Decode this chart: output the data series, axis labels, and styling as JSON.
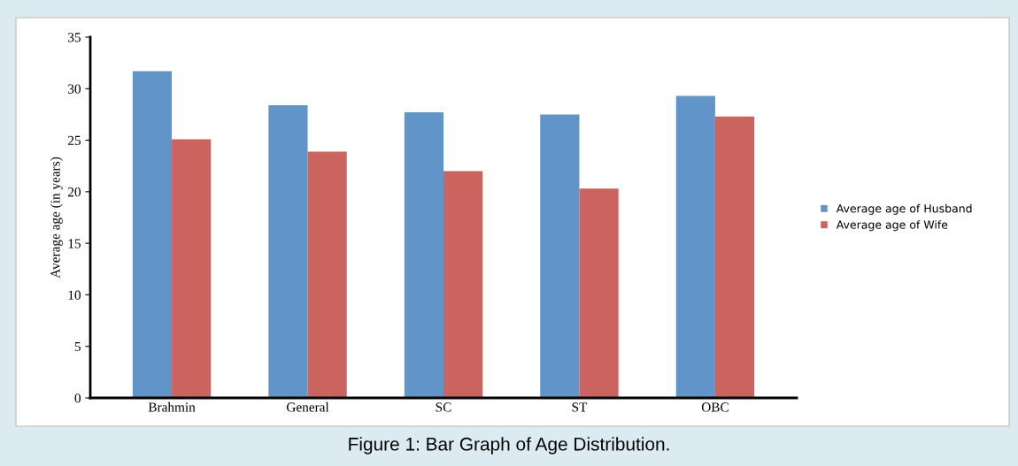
{
  "chart_data": {
    "type": "bar",
    "ylabel": "Average age (in years)",
    "categories": [
      "Brahmin",
      "General",
      "SC",
      "ST",
      "OBC"
    ],
    "series": [
      {
        "name": "Average age of Husband",
        "color": "#6194c8",
        "values": [
          31.7,
          28.4,
          27.7,
          27.5,
          29.3
        ]
      },
      {
        "name": "Average age of Wife",
        "color": "#cb645e",
        "values": [
          25.1,
          23.9,
          22.0,
          20.3,
          27.3
        ]
      }
    ],
    "ylim": [
      0,
      35
    ],
    "yticks": [
      0,
      5,
      10,
      15,
      20,
      25,
      30,
      35
    ],
    "grid": false,
    "legend": "right",
    "annotations": [
      "Figure 1: Bar Graph of Age Distribution."
    ]
  }
}
